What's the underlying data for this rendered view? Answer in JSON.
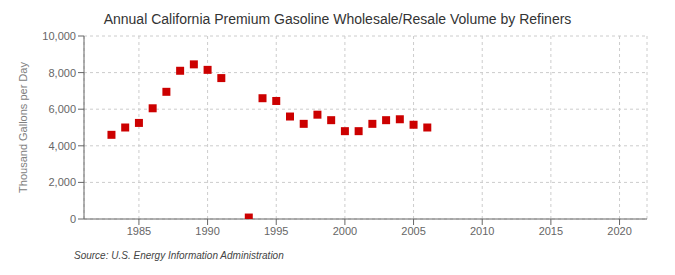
{
  "chart_data": {
    "type": "scatter",
    "title": "Annual California Premium Gasoline Wholesale/Resale Volume by Refiners",
    "ylabel": "Thousand Gallons per Day",
    "annotations": [
      "Source: U.S. Energy Information Administration"
    ],
    "x": [
      1983,
      1984,
      1985,
      1986,
      1987,
      1988,
      1989,
      1990,
      1991,
      1993,
      1994,
      1995,
      1996,
      1997,
      1998,
      1999,
      2000,
      2001,
      2002,
      2003,
      2004,
      2005,
      2006
    ],
    "values": [
      4600,
      5000,
      5250,
      6050,
      6950,
      8100,
      8450,
      8150,
      7700,
      80,
      6600,
      6450,
      5600,
      5200,
      5700,
      5400,
      4800,
      4800,
      5200,
      5400,
      5450,
      5150,
      5000
    ],
    "color": "#cc0000",
    "marker": "square",
    "xlim": [
      1981,
      2022
    ],
    "ylim": [
      0,
      10000
    ],
    "xticks": [
      1985,
      1990,
      1995,
      2000,
      2005,
      2010,
      2015,
      2020
    ],
    "yticks": [
      0,
      {
        "value": 2000,
        "label": "2,000"
      },
      {
        "value": 4000,
        "label": "4,000"
      },
      {
        "value": 6000,
        "label": "6,000"
      },
      {
        "value": 8000,
        "label": "8,000"
      },
      {
        "value": 10000,
        "label": "10,000"
      }
    ],
    "grid": true
  }
}
